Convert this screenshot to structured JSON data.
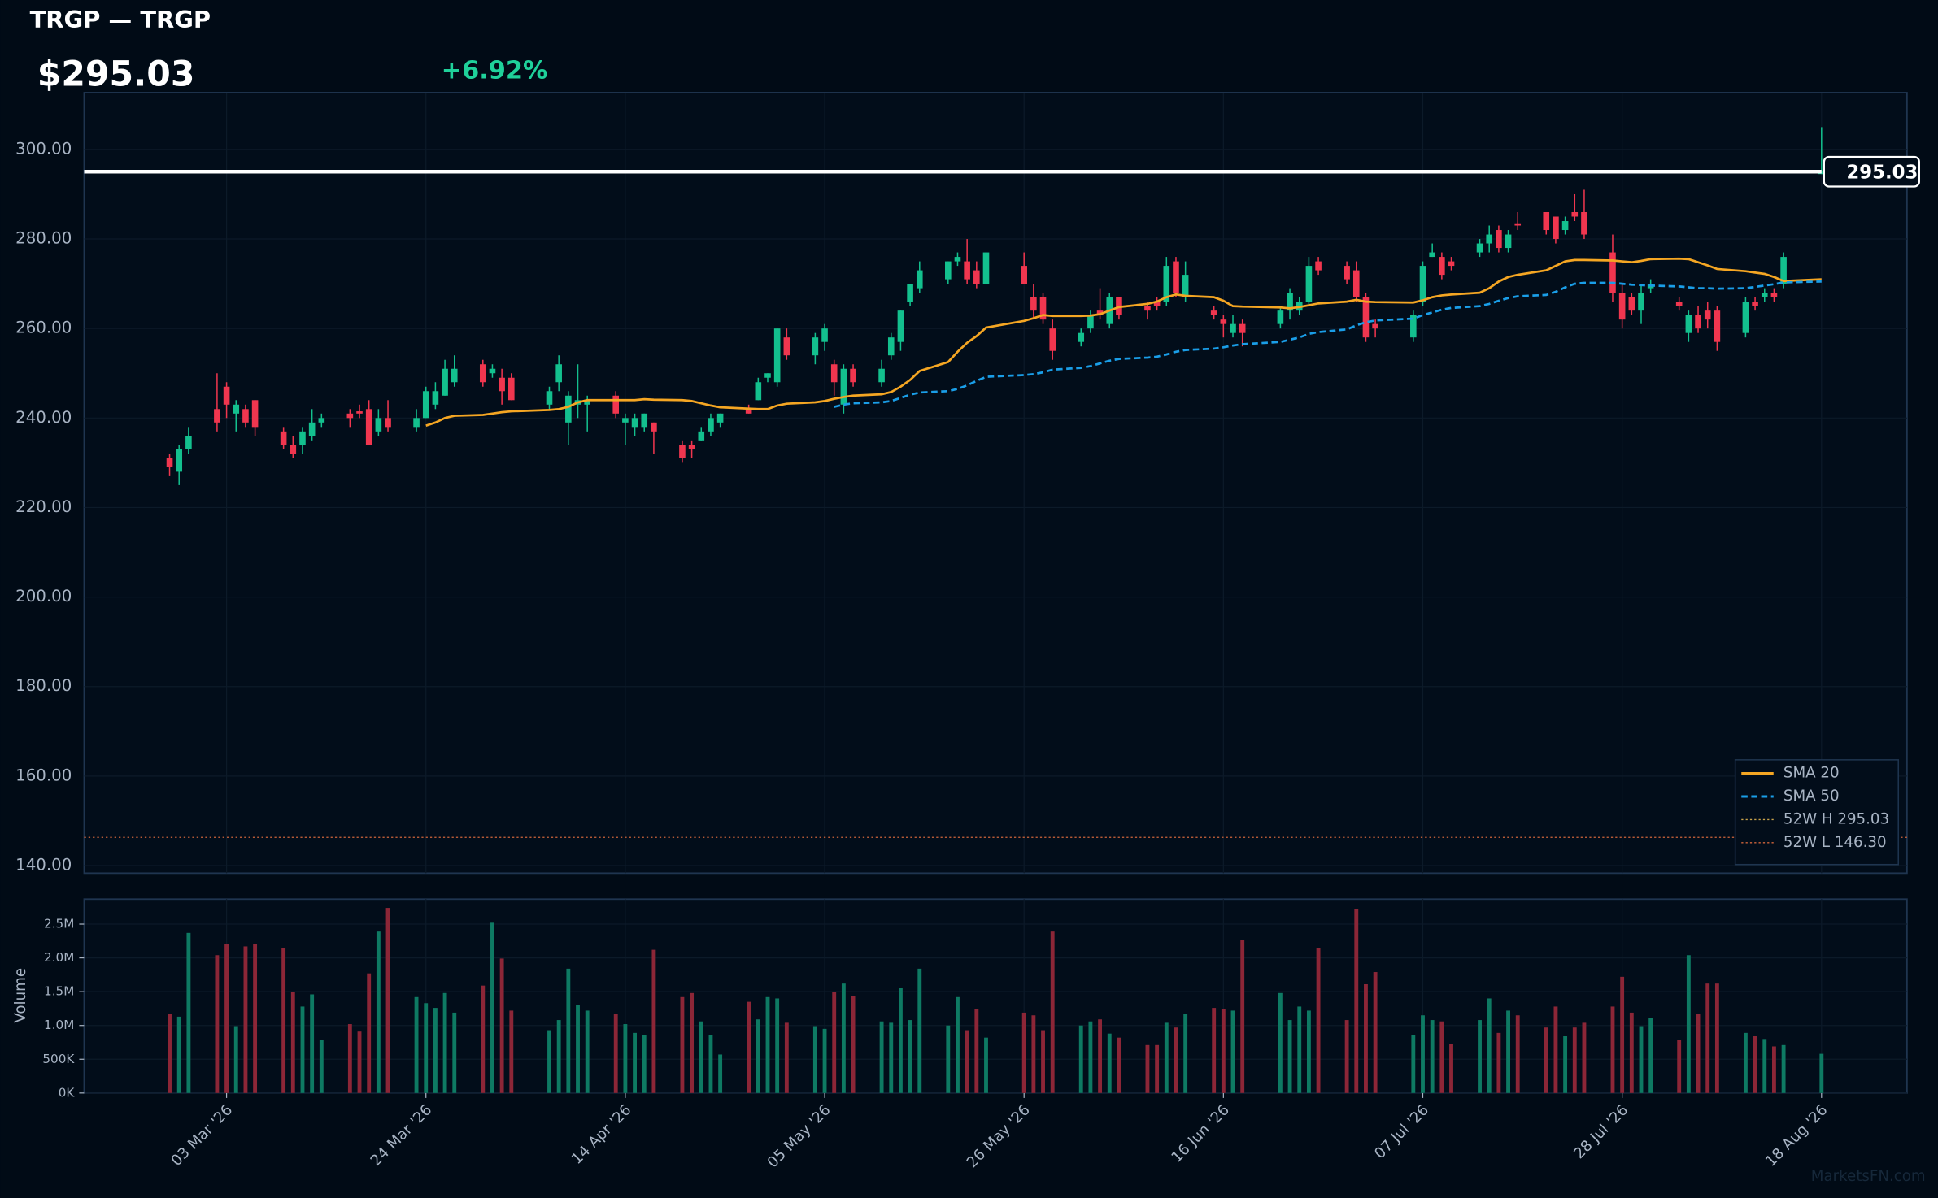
{
  "header": {
    "title": "TRGP — TRGP",
    "price": "$295.03",
    "change": "+6.92%"
  },
  "watermark": "MarketsFN.com",
  "chart_data": {
    "type": "candlestick",
    "up_color": "#13c08e",
    "down_color": "#f0364f",
    "grid": true,
    "x": [
      "2026-02-25",
      "2026-02-26",
      "2026-02-27",
      "2026-03-02",
      "2026-03-03",
      "2026-03-04",
      "2026-03-05",
      "2026-03-06",
      "2026-03-09",
      "2026-03-10",
      "2026-03-11",
      "2026-03-12",
      "2026-03-13",
      "2026-03-16",
      "2026-03-17",
      "2026-03-18",
      "2026-03-19",
      "2026-03-20",
      "2026-03-23",
      "2026-03-24",
      "2026-03-25",
      "2026-03-26",
      "2026-03-27",
      "2026-03-30",
      "2026-03-31",
      "2026-04-01",
      "2026-04-02",
      "2026-04-06",
      "2026-04-07",
      "2026-04-08",
      "2026-04-09",
      "2026-04-10",
      "2026-04-13",
      "2026-04-14",
      "2026-04-15",
      "2026-04-16",
      "2026-04-17",
      "2026-04-20",
      "2026-04-21",
      "2026-04-22",
      "2026-04-23",
      "2026-04-24",
      "2026-04-27",
      "2026-04-28",
      "2026-04-29",
      "2026-04-30",
      "2026-05-01",
      "2026-05-04",
      "2026-05-05",
      "2026-05-06",
      "2026-05-07",
      "2026-05-08",
      "2026-05-11",
      "2026-05-12",
      "2026-05-13",
      "2026-05-14",
      "2026-05-15",
      "2026-05-18",
      "2026-05-19",
      "2026-05-20",
      "2026-05-21",
      "2026-05-22",
      "2026-05-26",
      "2026-05-27",
      "2026-05-28",
      "2026-05-29",
      "2026-06-01",
      "2026-06-02",
      "2026-06-03",
      "2026-06-04",
      "2026-06-05",
      "2026-06-08",
      "2026-06-09",
      "2026-06-10",
      "2026-06-11",
      "2026-06-12",
      "2026-06-15",
      "2026-06-16",
      "2026-06-17",
      "2026-06-18",
      "2026-06-22",
      "2026-06-23",
      "2026-06-24",
      "2026-06-25",
      "2026-06-26",
      "2026-06-29",
      "2026-06-30",
      "2026-07-01",
      "2026-07-02",
      "2026-07-06",
      "2026-07-07",
      "2026-07-08",
      "2026-07-09",
      "2026-07-10",
      "2026-07-13",
      "2026-07-14",
      "2026-07-15",
      "2026-07-16",
      "2026-07-17",
      "2026-07-20",
      "2026-07-21",
      "2026-07-22",
      "2026-07-23",
      "2026-07-24",
      "2026-07-27",
      "2026-07-28",
      "2026-07-29",
      "2026-07-30",
      "2026-07-31",
      "2026-08-03",
      "2026-08-04",
      "2026-08-05",
      "2026-08-06",
      "2026-08-07",
      "2026-08-10",
      "2026-08-11",
      "2026-08-12",
      "2026-08-13",
      "2026-08-14",
      "2026-08-18"
    ],
    "open": [
      231,
      228,
      233,
      242,
      247,
      241,
      242,
      244,
      237,
      234,
      234,
      236,
      239,
      241,
      241.5,
      242,
      237,
      240,
      238,
      240,
      243,
      245,
      248,
      252,
      250,
      249,
      249,
      243,
      248,
      239,
      243,
      243,
      245,
      239,
      238,
      238,
      239,
      234,
      234,
      235,
      237,
      239,
      242,
      244,
      249,
      248,
      258,
      254,
      257,
      252,
      243,
      251,
      248,
      254,
      257,
      266,
      269,
      271,
      275,
      275,
      273,
      270,
      274,
      267,
      267,
      260,
      257,
      260,
      264,
      261,
      267,
      265,
      266,
      266,
      275,
      267,
      264,
      262,
      259,
      261,
      261,
      264,
      264,
      266,
      275,
      274,
      273,
      267,
      261,
      258,
      266,
      276,
      276,
      275,
      277,
      279,
      282,
      278,
      283.5,
      286,
      285,
      282,
      286,
      286,
      277,
      268,
      267,
      264,
      269,
      266,
      259,
      263,
      264,
      264,
      259,
      266,
      267,
      268,
      270,
      294.5
    ],
    "high": [
      232,
      234,
      238,
      250,
      248,
      244,
      243,
      244,
      238,
      236,
      238,
      242,
      241,
      242,
      243,
      244,
      242,
      244,
      242,
      247,
      248,
      253,
      254,
      253,
      252,
      251,
      250,
      247,
      254,
      246,
      252,
      245,
      246,
      241,
      241,
      241,
      239,
      235,
      235,
      238,
      241,
      241,
      243,
      249,
      250,
      260,
      260,
      259,
      261,
      253,
      252,
      252,
      253,
      259,
      264,
      270,
      275,
      275,
      277,
      280,
      275,
      277,
      277,
      270,
      268,
      262,
      260,
      264,
      269,
      268,
      267,
      266,
      267,
      276,
      276,
      275,
      265,
      263,
      263,
      262,
      265,
      269,
      267,
      276,
      276,
      275,
      275,
      268,
      262,
      264,
      275,
      279,
      277,
      276,
      280,
      283,
      283,
      282,
      286,
      286,
      285,
      285,
      290,
      291,
      281,
      270,
      268,
      270,
      271,
      267,
      264,
      265,
      266,
      265,
      267,
      267,
      269,
      269,
      277,
      305
    ],
    "low": [
      227,
      225,
      232,
      237,
      240,
      237,
      238,
      236,
      233,
      231,
      232,
      235,
      238,
      238,
      240,
      234,
      236,
      237,
      237,
      240,
      242,
      245,
      247,
      247,
      249,
      243,
      244,
      242,
      246,
      234,
      240,
      237,
      240,
      234,
      236,
      237,
      232,
      230,
      231,
      235,
      236,
      238,
      241,
      244,
      248,
      247,
      253,
      252,
      255,
      245,
      241,
      247,
      247,
      253,
      255,
      265,
      268,
      270,
      274,
      270,
      269,
      270,
      270,
      262,
      261,
      253,
      256,
      259,
      262,
      260,
      262,
      262,
      264,
      265,
      267,
      266,
      262,
      258,
      258,
      256,
      260,
      262,
      263,
      265,
      272,
      270,
      266,
      257,
      258,
      257,
      265,
      276,
      271,
      273,
      276,
      277,
      277,
      277,
      282,
      281,
      279,
      281,
      284,
      280,
      266,
      260,
      263,
      261,
      268,
      264,
      257,
      259,
      260,
      255,
      258,
      264,
      266,
      266,
      269,
      294.5
    ],
    "close": [
      229,
      233,
      236,
      239,
      243,
      243,
      239,
      238,
      234,
      232,
      237,
      239,
      240,
      240,
      241,
      234,
      240,
      238,
      240,
      246,
      246,
      251,
      251,
      248,
      251,
      246,
      244,
      246,
      252,
      245,
      244,
      244,
      241,
      240,
      240,
      241,
      237,
      231,
      233,
      237,
      240,
      241,
      241,
      248,
      250,
      260,
      254,
      258,
      260,
      248,
      251,
      248,
      251,
      258,
      264,
      270,
      273,
      275,
      276,
      271,
      270,
      277,
      270,
      264,
      262,
      255,
      259,
      263,
      263,
      267,
      263,
      264,
      265,
      274,
      268,
      272,
      263,
      261,
      261,
      259,
      264,
      268,
      266,
      274,
      273,
      271,
      267,
      258,
      260,
      263,
      274,
      277,
      272,
      274,
      279,
      281,
      278,
      281,
      283,
      282,
      280,
      284,
      285,
      281,
      268,
      262,
      264,
      268,
      270,
      265,
      263,
      260,
      262,
      257,
      266,
      265,
      268,
      267,
      276,
      295.03
    ],
    "ylim": [
      138.3,
      312.7
    ],
    "yticks": [
      {
        "value": 140,
        "label": "140.00"
      },
      {
        "value": 160,
        "label": "160.00"
      },
      {
        "value": 180,
        "label": "180.00"
      },
      {
        "value": 200,
        "label": "200.00"
      },
      {
        "value": 220,
        "label": "220.00"
      },
      {
        "value": 240,
        "label": "240.00"
      },
      {
        "value": 260,
        "label": "260.00"
      },
      {
        "value": 280,
        "label": "280.00"
      },
      {
        "value": 300,
        "label": "300.00"
      }
    ],
    "xlim": [
      "2026-02-16",
      "2026-08-27"
    ],
    "xticks": [
      {
        "value": "2026-03-03",
        "label": "03 Mar '26"
      },
      {
        "value": "2026-03-24",
        "label": "24 Mar '26"
      },
      {
        "value": "2026-04-14",
        "label": "14 Apr '26"
      },
      {
        "value": "2026-05-05",
        "label": "05 May '26"
      },
      {
        "value": "2026-05-26",
        "label": "26 May '26"
      },
      {
        "value": "2026-06-16",
        "label": "16 Jun '26"
      },
      {
        "value": "2026-07-07",
        "label": "07 Jul '26"
      },
      {
        "value": "2026-07-28",
        "label": "28 Jul '26"
      },
      {
        "value": "2026-08-18",
        "label": "18 Aug '26"
      }
    ],
    "last_price": {
      "value": 295.03,
      "label": "295.03",
      "color": "#ffffff"
    },
    "series": [
      {
        "name": "SMA 20",
        "color": "#f5a623",
        "style": "solid",
        "values": [
          null,
          null,
          null,
          null,
          null,
          null,
          null,
          null,
          null,
          null,
          null,
          null,
          null,
          null,
          null,
          null,
          null,
          null,
          null,
          238.3,
          239,
          240,
          240.5,
          240.7,
          241,
          241.3,
          241.5,
          241.8,
          242,
          242.5,
          243.5,
          244,
          244,
          244,
          244,
          244.2,
          244.1,
          244,
          243.8,
          243.3,
          242.8,
          242.4,
          242.1,
          242,
          242,
          242.8,
          243.2,
          243.5,
          243.8,
          244.3,
          244.7,
          245,
          245.3,
          245.8,
          247,
          248.5,
          250.5,
          252.5,
          254.8,
          256.8,
          258.3,
          260.2,
          261.7,
          262.3,
          263,
          262.8,
          262.8,
          262.9,
          263.2,
          264,
          264.8,
          265.5,
          266,
          267,
          267.6,
          267.3,
          267,
          266.2,
          265,
          264.9,
          264.7,
          264.5,
          264.8,
          265.2,
          265.6,
          266,
          266.4,
          266,
          265.9,
          265.8,
          266.3,
          267,
          267.4,
          267.6,
          268,
          269,
          270.5,
          271.5,
          272,
          273,
          274,
          275,
          275.3,
          275.3,
          275.2,
          275,
          274.8,
          275.1,
          275.5,
          275.6,
          275.5,
          274.8,
          274.1,
          273.3,
          272.8,
          272.5,
          272.2,
          271.5,
          270.6,
          271
        ]
      },
      {
        "name": "SMA 50",
        "color": "#1a9ee8",
        "style": "dashed",
        "values": [
          null,
          null,
          null,
          null,
          null,
          null,
          null,
          null,
          null,
          null,
          null,
          null,
          null,
          null,
          null,
          null,
          null,
          null,
          null,
          null,
          null,
          null,
          null,
          null,
          null,
          null,
          null,
          null,
          null,
          null,
          null,
          null,
          null,
          null,
          null,
          null,
          null,
          null,
          null,
          null,
          null,
          null,
          null,
          null,
          null,
          null,
          null,
          null,
          null,
          242.5,
          243,
          243.3,
          243.5,
          243.8,
          244.5,
          245.2,
          245.7,
          246,
          246.5,
          247.3,
          248.3,
          249.2,
          249.6,
          249.8,
          250.2,
          250.8,
          251.2,
          251.6,
          252.2,
          252.8,
          253.2,
          253.5,
          253.7,
          254.2,
          254.8,
          255.2,
          255.5,
          255.8,
          256.2,
          256.5,
          257,
          257.5,
          258,
          258.8,
          259.2,
          259.8,
          260.7,
          261.4,
          261.8,
          262.2,
          263,
          263.6,
          264.2,
          264.6,
          265,
          265.5,
          266.2,
          266.8,
          267.2,
          267.5,
          268.2,
          269.2,
          270,
          270.2,
          270.2,
          270,
          269.8,
          269.7,
          269.6,
          269.4,
          269.2,
          269,
          269,
          268.9,
          269,
          269.3,
          269.6,
          269.9,
          270.3,
          270.5
        ]
      }
    ],
    "hlines": [
      {
        "name": "52W H 295.03",
        "value": 295.03,
        "color": "#c8a24a",
        "style": "dotted"
      },
      {
        "name": "52W L 146.30",
        "value": 146.3,
        "color": "#d0643a",
        "style": "dotted"
      }
    ],
    "legend": "lower right",
    "volume": {
      "label": "Volume",
      "up_color": "#0e7a63",
      "down_color": "#8c2637",
      "values": [
        1170000,
        1130000,
        2370000,
        2040000,
        2210000,
        990000,
        2170000,
        2210000,
        2150000,
        1500000,
        1280000,
        1460000,
        780000,
        1020000,
        910000,
        1770000,
        2390000,
        2740000,
        1420000,
        1330000,
        1260000,
        1480000,
        1190000,
        1590000,
        2520000,
        1990000,
        1220000,
        930000,
        1080000,
        1840000,
        1300000,
        1220000,
        1170000,
        1020000,
        890000,
        860000,
        2120000,
        1420000,
        1480000,
        1060000,
        860000,
        570000,
        1350000,
        1090000,
        1420000,
        1400000,
        1040000,
        990000,
        950000,
        1500000,
        1620000,
        1440000,
        1060000,
        1040000,
        1550000,
        1080000,
        1840000,
        1000000,
        1420000,
        930000,
        1240000,
        820000,
        1190000,
        1150000,
        930000,
        2390000,
        1000000,
        1060000,
        1090000,
        880000,
        820000,
        710000,
        710000,
        1040000,
        970000,
        1170000,
        1260000,
        1240000,
        1220000,
        2260000,
        1480000,
        1080000,
        1280000,
        1220000,
        2140000,
        1080000,
        2720000,
        1610000,
        1790000,
        860000,
        1150000,
        1080000,
        1060000,
        730000,
        1080000,
        1400000,
        890000,
        1220000,
        1150000,
        970000,
        1280000,
        840000,
        970000,
        1040000,
        1280000,
        1720000,
        1190000,
        990000,
        1110000,
        780000,
        2040000,
        1170000,
        1620000,
        1620000,
        890000,
        840000,
        800000,
        690000,
        710000,
        580000
      ],
      "ylim": [
        0,
        2870000
      ],
      "yticks": [
        {
          "value": 0,
          "label": "0K"
        },
        {
          "value": 500000,
          "label": "500K"
        },
        {
          "value": 1000000,
          "label": "1.0M"
        },
        {
          "value": 1500000,
          "label": "1.5M"
        },
        {
          "value": 2000000,
          "label": "2.0M"
        },
        {
          "value": 2500000,
          "label": "2.5M"
        }
      ]
    }
  }
}
